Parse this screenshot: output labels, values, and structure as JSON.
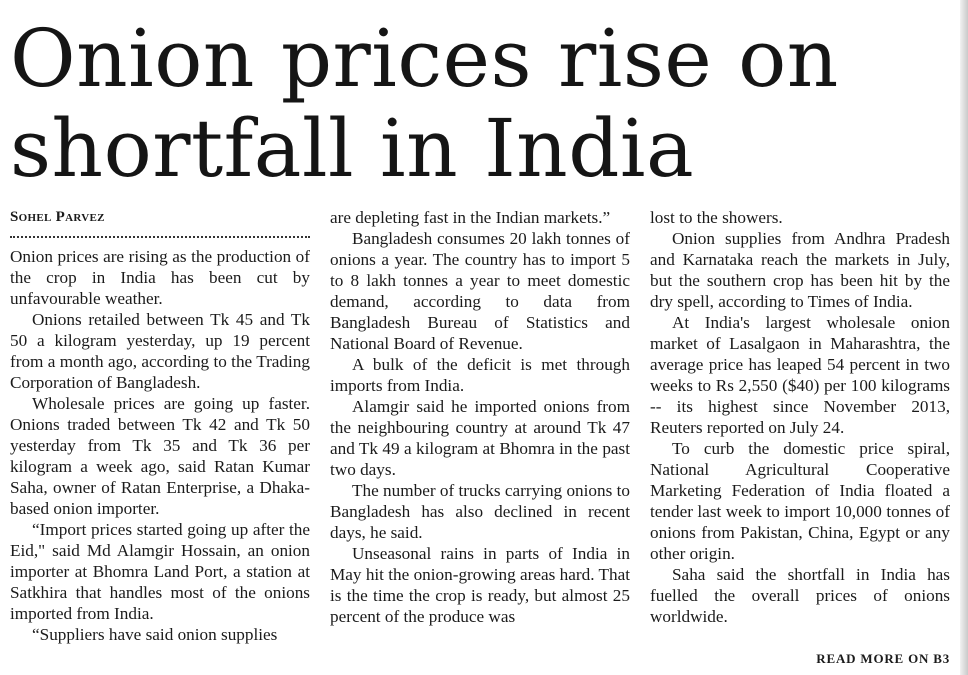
{
  "headline": {
    "line1": "Onion prices rise on",
    "line2": "shortfall in India"
  },
  "byline": "Sohel Parvez",
  "columns": [
    [
      {
        "text": "Onion prices are rising as the production of the crop in India has been cut by unfavourable weather.",
        "indent": false
      },
      {
        "text": "Onions retailed between Tk 45 and Tk 50 a kilogram yesterday, up 19 percent from a month ago, according to the Trading Corporation of Bangladesh.",
        "indent": true
      },
      {
        "text": "Wholesale prices are going up faster. Onions traded between Tk 42 and Tk 50 yesterday from Tk 35 and Tk 36 per kilogram a week ago, said Ratan Kumar Saha, owner of Ratan Enterprise, a Dhaka-based onion importer.",
        "indent": true
      },
      {
        "text": "“Import prices started going up after the Eid,\" said Md Alamgir Hossain, an onion importer at Bhomra Land Port, a station at Satkhira that handles most of the onions imported from India.",
        "indent": true
      },
      {
        "text": "“Suppliers have said onion supplies",
        "indent": true
      }
    ],
    [
      {
        "text": "are depleting fast in the Indian markets.”",
        "indent": false
      },
      {
        "text": "Bangladesh consumes 20 lakh tonnes of onions a year. The country has to import 5 to 8 lakh tonnes a year to meet domestic demand, according to data from Bangladesh Bureau of Statistics and National Board of Revenue.",
        "indent": true
      },
      {
        "text": "A bulk of the deficit is met through imports from India.",
        "indent": true
      },
      {
        "text": "Alamgir said he imported onions from the neighbouring country at around Tk 47 and Tk 49 a kilogram at Bhomra in the past two days.",
        "indent": true
      },
      {
        "text": "The number of trucks carrying onions to Bangladesh has also declined in recent days, he said.",
        "indent": true
      },
      {
        "text": "Unseasonal rains in parts of India in May hit the onion-growing areas hard. That is the time the crop is ready, but almost 25 percent of the produce was",
        "indent": true
      }
    ],
    [
      {
        "text": "lost to the showers.",
        "indent": false
      },
      {
        "text": "Onion supplies from Andhra Pradesh and Karnataka reach the markets in July, but the southern crop has been hit by the dry spell, according to Times of India.",
        "indent": true
      },
      {
        "text": "At India's largest wholesale onion market of Lasalgaon in Maharashtra, the average price has leaped 54 percent in two weeks to Rs 2,550 ($40) per 100 kilograms -- its highest since November 2013, Reuters reported on July 24.",
        "indent": true
      },
      {
        "text": "To curb the domestic price spiral, National Agricultural Cooperative Marketing Federation of India floated a tender last week to import 10,000 tonnes of onions from Pakistan, China, Egypt or any other origin.",
        "indent": true
      },
      {
        "text": "Saha said the shortfall in India has fuelled the overall prices of onions worldwide.",
        "indent": true
      }
    ]
  ],
  "read_more": "READ MORE ON B3"
}
